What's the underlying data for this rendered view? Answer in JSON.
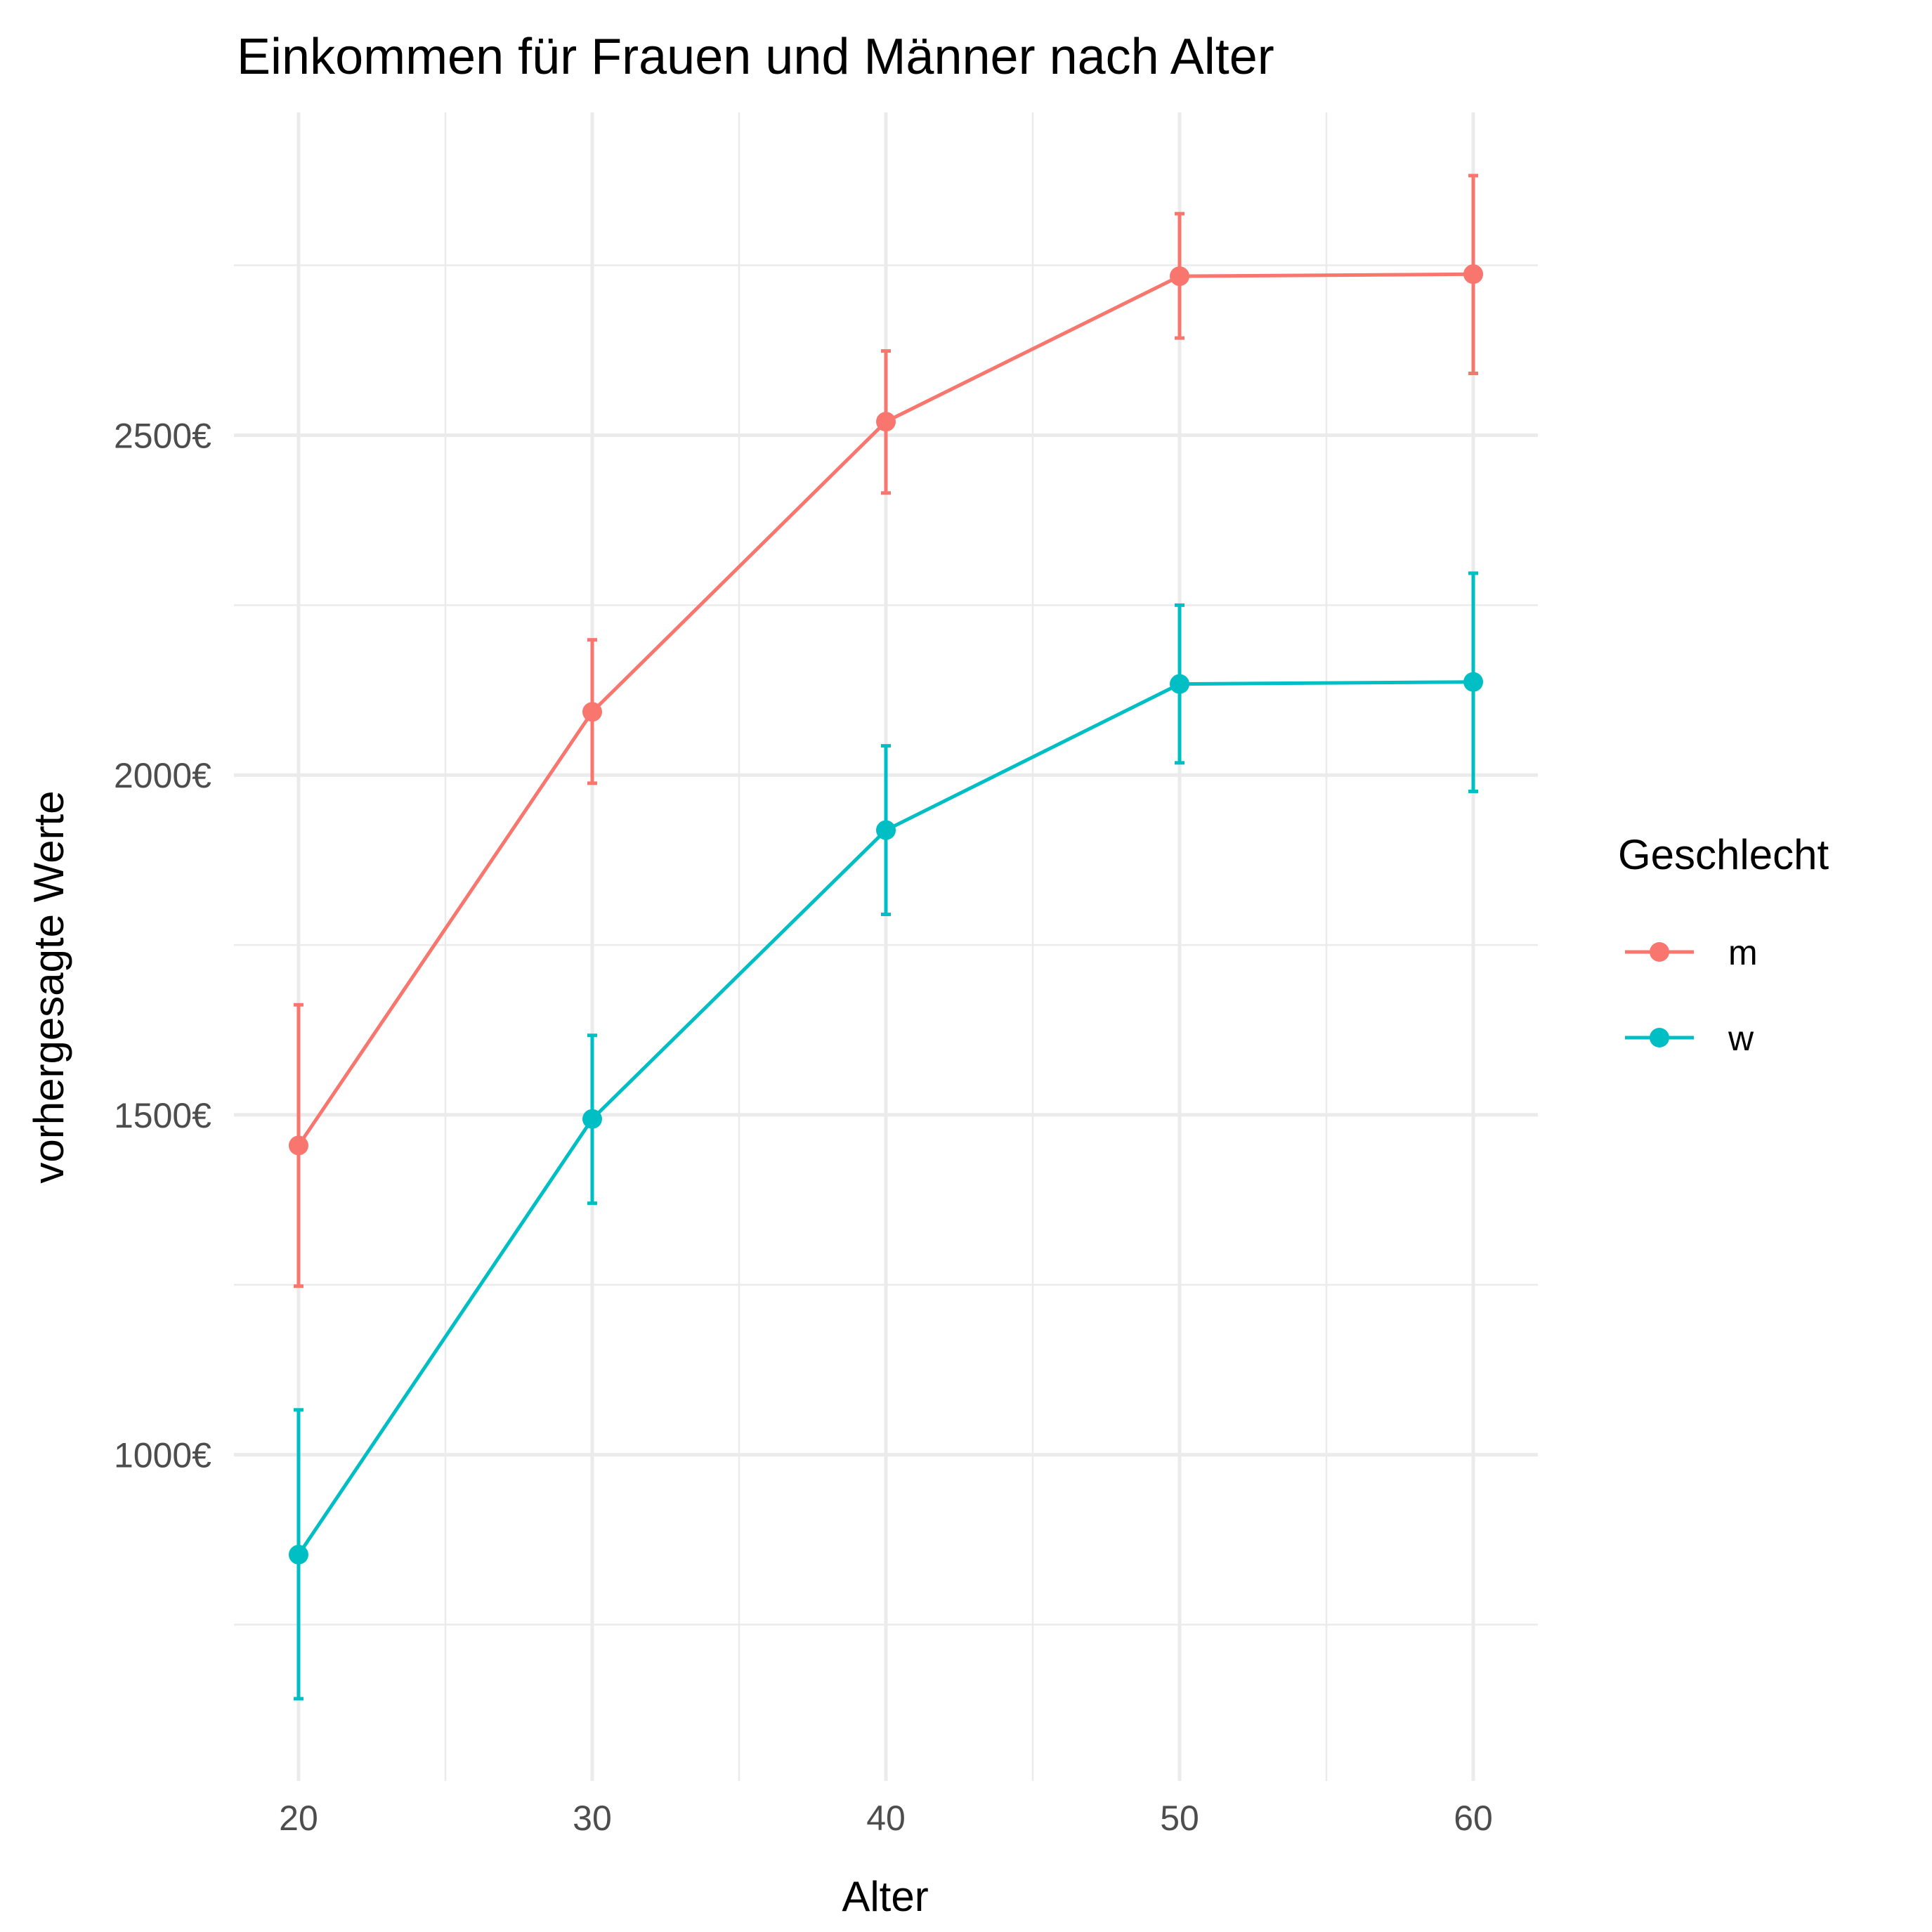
{
  "chart_data": {
    "type": "line",
    "title": "Einkommen für Frauen und Männer nach Alter",
    "xlabel": "Alter",
    "ylabel": "vorhergesagte Werte",
    "x": [
      20,
      30,
      40,
      50,
      60
    ],
    "xticks": [
      20,
      30,
      40,
      50,
      60
    ],
    "yticks": [
      1000,
      1500,
      2000,
      2500
    ],
    "ytick_labels": [
      "1000€",
      "1500€",
      "2000€",
      "2500€"
    ],
    "xlim": [
      17.8,
      62.2
    ],
    "ylim": [
      520,
      2975
    ],
    "grid": true,
    "legend": {
      "title": "Geschlecht",
      "position": "right"
    },
    "series": [
      {
        "name": "m",
        "color": "#f8766d",
        "values": [
          1455,
          2093,
          2520,
          2734,
          2737
        ],
        "lower": [
          1248,
          1988,
          2415,
          2643,
          2591
        ],
        "upper": [
          1662,
          2199,
          2624,
          2826,
          2882
        ]
      },
      {
        "name": "w",
        "color": "#00bfc4",
        "values": [
          853,
          1494,
          1919,
          2134,
          2137
        ],
        "lower": [
          641,
          1370,
          1795,
          2018,
          1976
        ],
        "upper": [
          1066,
          1617,
          2043,
          2250,
          2297
        ]
      }
    ]
  }
}
